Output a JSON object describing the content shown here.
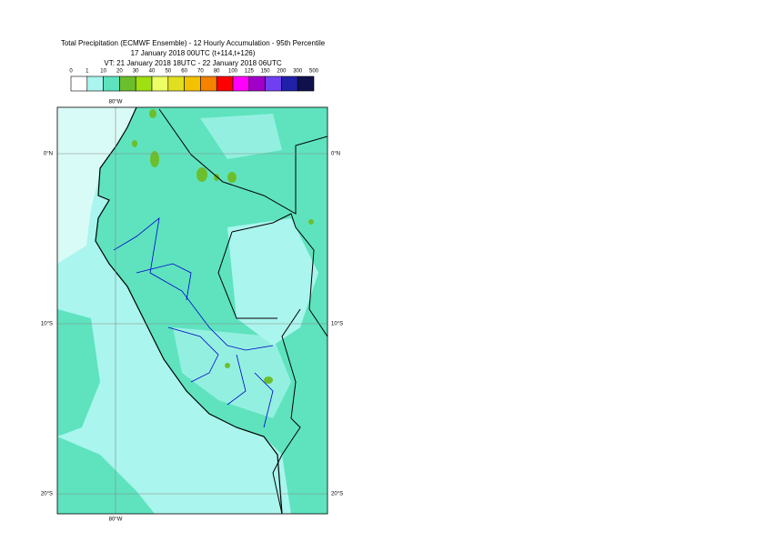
{
  "header": {
    "lines": [
      "Total Precipitation (ECMWF Ensemble) - 12 Hourly Accumulation - 95th Percentile",
      "17 January 2018 00UTC (t+114,t+126)",
      "VT: 21 January 2018 18UTC - 22 January 2018 06UTC"
    ]
  },
  "legend": {
    "labels": [
      "0",
      "1",
      "10",
      "20",
      "30",
      "40",
      "50",
      "60",
      "70",
      "80",
      "100",
      "125",
      "150",
      "200",
      "300",
      "500"
    ],
    "colors": [
      "#ffffff",
      "#aaf5ee",
      "#5ee3be",
      "#6cbf2c",
      "#9ee010",
      "#eeff66",
      "#e0e020",
      "#f2c200",
      "#f58200",
      "#ff0000",
      "#ff00ff",
      "#a000c8",
      "#7040f0",
      "#2020a8",
      "#10104c"
    ]
  },
  "map": {
    "lon_labels": [
      "80°W"
    ],
    "lat_labels": [
      "0°N",
      "10°S",
      "20°S"
    ]
  }
}
